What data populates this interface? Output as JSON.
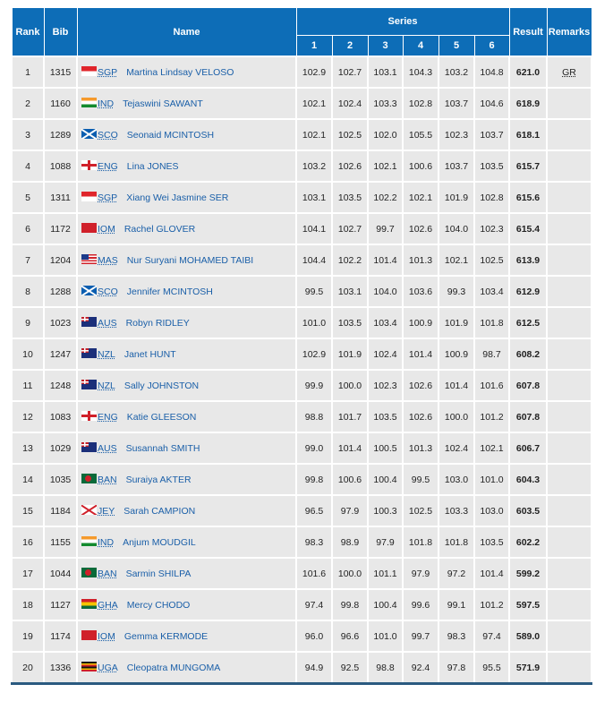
{
  "header": {
    "rank": "Rank",
    "bib": "Bib",
    "name": "Name",
    "series": "Series",
    "series_cols": [
      "1",
      "2",
      "3",
      "4",
      "5",
      "6"
    ],
    "result": "Result",
    "remarks": "Remarks"
  },
  "rows": [
    {
      "rank": "1",
      "bib": "1315",
      "noc": "SGP",
      "name": "Martina Lindsay VELOSO",
      "series": [
        "102.9",
        "102.7",
        "103.1",
        "104.3",
        "103.2",
        "104.8"
      ],
      "result": "621.0",
      "remarks": "GR"
    },
    {
      "rank": "2",
      "bib": "1160",
      "noc": "IND",
      "name": "Tejaswini SAWANT",
      "series": [
        "102.1",
        "102.4",
        "103.3",
        "102.8",
        "103.7",
        "104.6"
      ],
      "result": "618.9",
      "remarks": ""
    },
    {
      "rank": "3",
      "bib": "1289",
      "noc": "SCO",
      "name": "Seonaid MCINTOSH",
      "series": [
        "102.1",
        "102.5",
        "102.0",
        "105.5",
        "102.3",
        "103.7"
      ],
      "result": "618.1",
      "remarks": ""
    },
    {
      "rank": "4",
      "bib": "1088",
      "noc": "ENG",
      "name": "Lina JONES",
      "series": [
        "103.2",
        "102.6",
        "102.1",
        "100.6",
        "103.7",
        "103.5"
      ],
      "result": "615.7",
      "remarks": ""
    },
    {
      "rank": "5",
      "bib": "1311",
      "noc": "SGP",
      "name": "Xiang Wei Jasmine SER",
      "series": [
        "103.1",
        "103.5",
        "102.2",
        "102.1",
        "101.9",
        "102.8"
      ],
      "result": "615.6",
      "remarks": ""
    },
    {
      "rank": "6",
      "bib": "1172",
      "noc": "IOM",
      "name": "Rachel GLOVER",
      "series": [
        "104.1",
        "102.7",
        "99.7",
        "102.6",
        "104.0",
        "102.3"
      ],
      "result": "615.4",
      "remarks": ""
    },
    {
      "rank": "7",
      "bib": "1204",
      "noc": "MAS",
      "name": "Nur Suryani MOHAMED TAIBI",
      "series": [
        "104.4",
        "102.2",
        "101.4",
        "101.3",
        "102.1",
        "102.5"
      ],
      "result": "613.9",
      "remarks": ""
    },
    {
      "rank": "8",
      "bib": "1288",
      "noc": "SCO",
      "name": "Jennifer MCINTOSH",
      "series": [
        "99.5",
        "103.1",
        "104.0",
        "103.6",
        "99.3",
        "103.4"
      ],
      "result": "612.9",
      "remarks": ""
    },
    {
      "rank": "9",
      "bib": "1023",
      "noc": "AUS",
      "name": "Robyn RIDLEY",
      "series": [
        "101.0",
        "103.5",
        "103.4",
        "100.9",
        "101.9",
        "101.8"
      ],
      "result": "612.5",
      "remarks": ""
    },
    {
      "rank": "10",
      "bib": "1247",
      "noc": "NZL",
      "name": "Janet HUNT",
      "series": [
        "102.9",
        "101.9",
        "102.4",
        "101.4",
        "100.9",
        "98.7"
      ],
      "result": "608.2",
      "remarks": ""
    },
    {
      "rank": "11",
      "bib": "1248",
      "noc": "NZL",
      "name": "Sally JOHNSTON",
      "series": [
        "99.9",
        "100.0",
        "102.3",
        "102.6",
        "101.4",
        "101.6"
      ],
      "result": "607.8",
      "remarks": ""
    },
    {
      "rank": "12",
      "bib": "1083",
      "noc": "ENG",
      "name": "Katie GLEESON",
      "series": [
        "98.8",
        "101.7",
        "103.5",
        "102.6",
        "100.0",
        "101.2"
      ],
      "result": "607.8",
      "remarks": ""
    },
    {
      "rank": "13",
      "bib": "1029",
      "noc": "AUS",
      "name": "Susannah SMITH",
      "series": [
        "99.0",
        "101.4",
        "100.5",
        "101.3",
        "102.4",
        "102.1"
      ],
      "result": "606.7",
      "remarks": ""
    },
    {
      "rank": "14",
      "bib": "1035",
      "noc": "BAN",
      "name": "Suraiya AKTER",
      "series": [
        "99.8",
        "100.6",
        "100.4",
        "99.5",
        "103.0",
        "101.0"
      ],
      "result": "604.3",
      "remarks": ""
    },
    {
      "rank": "15",
      "bib": "1184",
      "noc": "JEY",
      "name": "Sarah CAMPION",
      "series": [
        "96.5",
        "97.9",
        "100.3",
        "102.5",
        "103.3",
        "103.0"
      ],
      "result": "603.5",
      "remarks": ""
    },
    {
      "rank": "16",
      "bib": "1155",
      "noc": "IND",
      "name": "Anjum MOUDGIL",
      "series": [
        "98.3",
        "98.9",
        "97.9",
        "101.8",
        "101.8",
        "103.5"
      ],
      "result": "602.2",
      "remarks": ""
    },
    {
      "rank": "17",
      "bib": "1044",
      "noc": "BAN",
      "name": "Sarmin SHILPA",
      "series": [
        "101.6",
        "100.0",
        "101.1",
        "97.9",
        "97.2",
        "101.4"
      ],
      "result": "599.2",
      "remarks": ""
    },
    {
      "rank": "18",
      "bib": "1127",
      "noc": "GHA",
      "name": "Mercy CHODO",
      "series": [
        "97.4",
        "99.8",
        "100.4",
        "99.6",
        "99.1",
        "101.2"
      ],
      "result": "597.5",
      "remarks": ""
    },
    {
      "rank": "19",
      "bib": "1174",
      "noc": "IOM",
      "name": "Gemma KERMODE",
      "series": [
        "96.0",
        "96.6",
        "101.0",
        "99.7",
        "98.3",
        "97.4"
      ],
      "result": "589.0",
      "remarks": ""
    },
    {
      "rank": "20",
      "bib": "1336",
      "noc": "UGA",
      "name": "Cleopatra MUNGOMA",
      "series": [
        "94.9",
        "92.5",
        "98.8",
        "92.4",
        "97.8",
        "95.5"
      ],
      "result": "571.9",
      "remarks": ""
    }
  ],
  "colors": {
    "header_bg": "#0d6db7",
    "row_bg": "#e8e8e8",
    "link": "#1a5fa8"
  }
}
